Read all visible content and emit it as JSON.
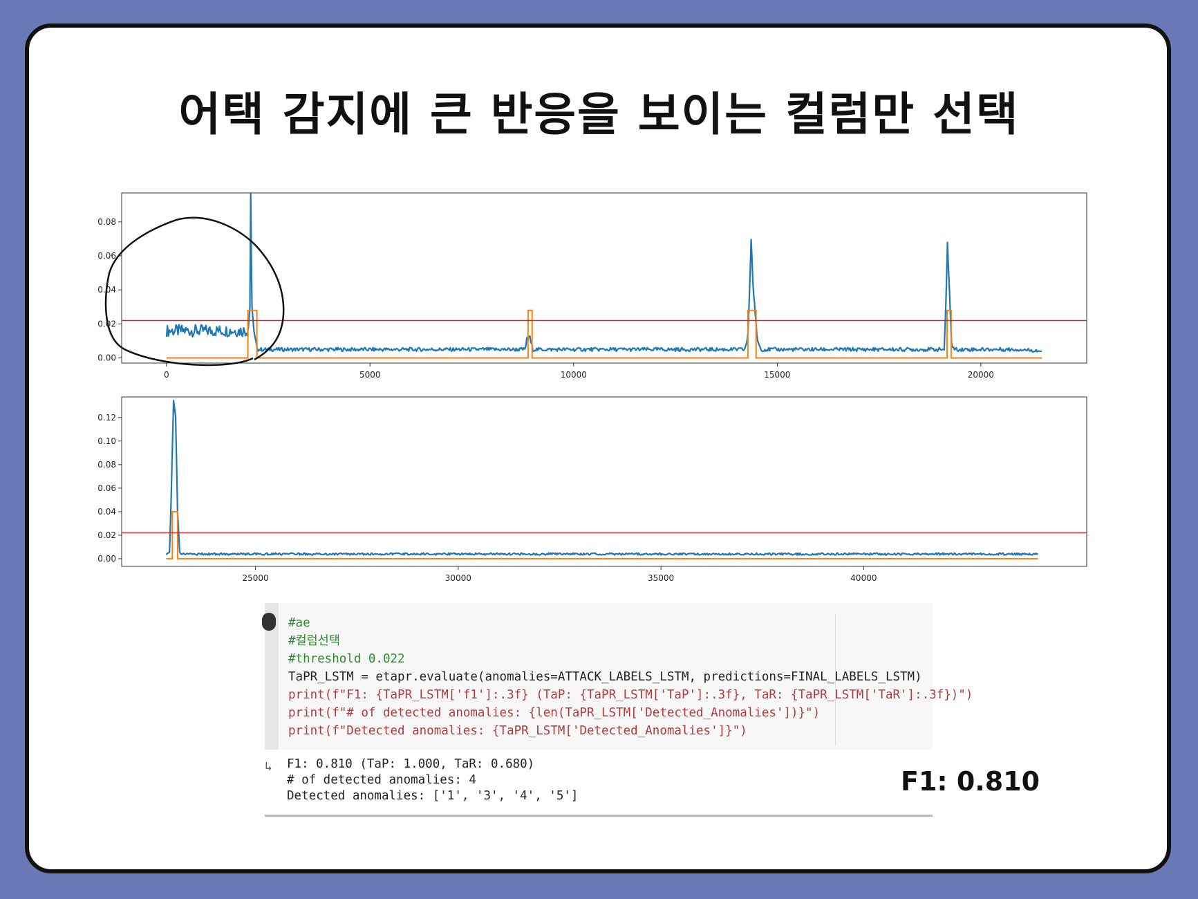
{
  "slide": {
    "title": "어택 감지에 큰 반응을 보이는 컬럼만 선택",
    "f1_callout": "F1: 0.810"
  },
  "code": {
    "lines": [
      "#ae",
      "#컬럼선택",
      "#threshold 0.022",
      "TaPR_LSTM = etapr.evaluate(anomalies=ATTACK_LABELS_LSTM, predictions=FINAL_LABELS_LSTM)",
      "print(f\"F1: {TaPR_LSTM['f1']:.3f} (TaP: {TaPR_LSTM['TaP']:.3f}, TaR: {TaPR_LSTM['TaR']:.3f})\")",
      "print(f\"# of detected anomalies: {len(TaPR_LSTM['Detected_Anomalies'])}\")",
      "print(f\"Detected anomalies: {TaPR_LSTM['Detected_Anomalies']}\")"
    ],
    "output": [
      "F1: 0.810 (TaP: 1.000, TaR: 0.680)",
      "# of detected anomalies: 4",
      "Detected anomalies: ['1', '3', '4', '5']"
    ]
  },
  "chart_data": [
    {
      "type": "line",
      "xlim": [
        -1100,
        22600
      ],
      "ylim": [
        -0.003,
        0.097
      ],
      "xticks": [
        0,
        5000,
        10000,
        15000,
        20000
      ],
      "yticks": [
        0.0,
        0.02,
        0.04,
        0.06,
        0.08
      ],
      "ytick_labels": [
        "0.00",
        "0.02",
        "0.04",
        "0.06",
        "0.08"
      ],
      "threshold": 0.022,
      "colors": {
        "score": "#1f77b4",
        "label": "#ff7f0e",
        "threshold": "#d62728"
      },
      "series": [
        {
          "role": "anomaly-score",
          "x": [
            0,
            1990,
            2010,
            2050,
            2070,
            2100,
            2150,
            2200,
            2250,
            2400,
            3000,
            5000,
            8800,
            8850,
            8900,
            8950,
            9000,
            12000,
            14200,
            14280,
            14320,
            14360,
            14400,
            14460,
            14520,
            14600,
            17000,
            19100,
            19140,
            19180,
            19230,
            19280,
            19350,
            21000,
            21500
          ],
          "y": [
            0.016,
            0.016,
            0.018,
            0.03,
            0.094,
            0.03,
            0.014,
            0.008,
            0.005,
            0.005,
            0.005,
            0.005,
            0.005,
            0.01,
            0.013,
            0.009,
            0.005,
            0.005,
            0.005,
            0.012,
            0.04,
            0.071,
            0.045,
            0.025,
            0.01,
            0.005,
            0.005,
            0.005,
            0.03,
            0.066,
            0.04,
            0.008,
            0.005,
            0.005,
            0.004
          ]
        },
        {
          "role": "attack-label",
          "x": [
            0,
            2000,
            2000,
            2220,
            2220,
            8880,
            8880,
            8980,
            8980,
            14280,
            14280,
            14480,
            14480,
            19170,
            19170,
            19270,
            19270,
            21500
          ],
          "y": [
            0,
            0,
            0.028,
            0.028,
            0,
            0,
            0.028,
            0.028,
            0,
            0,
            0.028,
            0.028,
            0,
            0,
            0.028,
            0.028,
            0,
            0
          ]
        }
      ]
    },
    {
      "type": "line",
      "xlim": [
        21700,
        45500
      ],
      "ylim": [
        -0.0065,
        0.1375
      ],
      "xticks": [
        25000,
        30000,
        35000,
        40000
      ],
      "yticks": [
        0.0,
        0.02,
        0.04,
        0.06,
        0.08,
        0.1,
        0.12
      ],
      "ytick_labels": [
        "0.00",
        "0.02",
        "0.04",
        "0.06",
        "0.08",
        "0.10",
        "0.12"
      ],
      "threshold": 0.022,
      "colors": {
        "score": "#1f77b4",
        "label": "#ff7f0e",
        "threshold": "#d62728"
      },
      "series": [
        {
          "role": "anomaly-score",
          "x": [
            22800,
            22880,
            22930,
            22980,
            23030,
            23080,
            23130,
            23200,
            23300,
            26000,
            30000,
            34000,
            38000,
            42000,
            44300
          ],
          "y": [
            0.004,
            0.005,
            0.06,
            0.133,
            0.12,
            0.04,
            0.006,
            0.004,
            0.004,
            0.004,
            0.004,
            0.004,
            0.004,
            0.004,
            0.004
          ]
        },
        {
          "role": "attack-label",
          "x": [
            22800,
            22950,
            22950,
            23080,
            23080,
            44300
          ],
          "y": [
            0,
            0,
            0.04,
            0.04,
            0,
            0
          ]
        }
      ]
    }
  ]
}
